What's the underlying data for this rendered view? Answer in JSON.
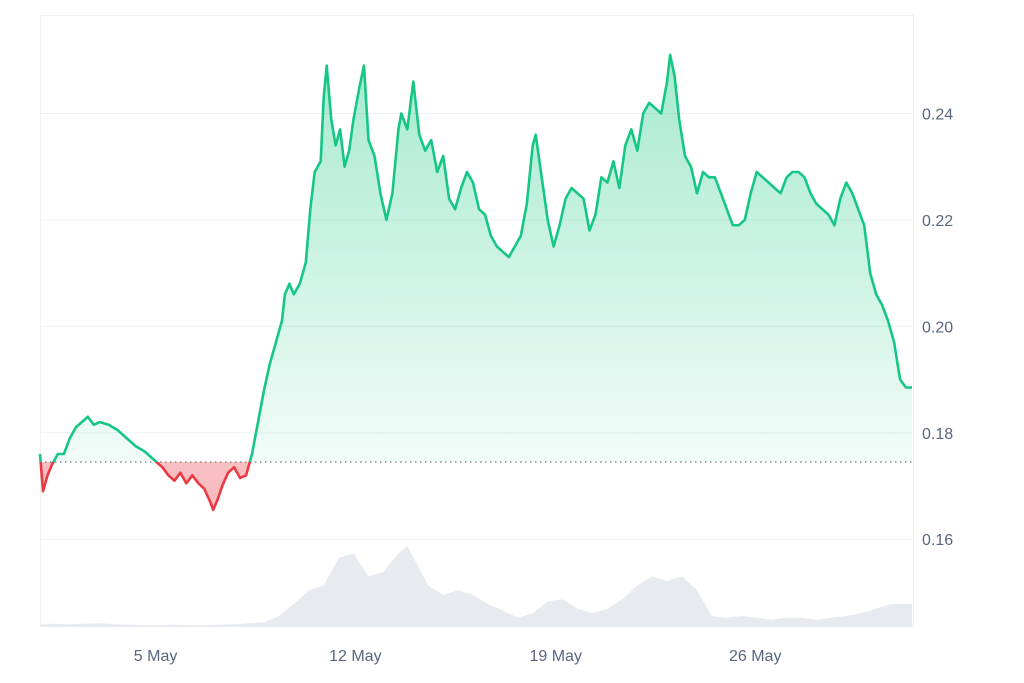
{
  "chart_data": {
    "type": "area",
    "title": "",
    "xlabel": "",
    "ylabel": "",
    "x_ticks": [
      "5 May",
      "12 May",
      "19 May",
      "26 May"
    ],
    "y_ticks": [
      "0.16",
      "0.18",
      "0.20",
      "0.22",
      "0.24"
    ],
    "ylim": [
      0.1435,
      0.2585
    ],
    "x_range": [
      "2 May",
      "1 Jun"
    ],
    "x_tick_days": [
      3.87,
      10.56,
      17.27,
      23.95
    ],
    "days_span": 30,
    "baseline": 0.1745,
    "grid": true,
    "legend": "none",
    "colors": {
      "up_line": "#16c784",
      "down_line": "#ea3943",
      "up_fill": "#16c784",
      "down_fill": "#ea3943",
      "volume": "#e7ebef",
      "grid": "#eff2f5",
      "baseline_dots": "#777777"
    },
    "series": [
      {
        "values": [
          [
            0.0,
            0.176
          ],
          [
            0.1,
            0.169
          ],
          [
            0.25,
            0.172
          ],
          [
            0.4,
            0.174
          ],
          [
            0.6,
            0.176
          ],
          [
            0.8,
            0.176
          ],
          [
            1.0,
            0.179
          ],
          [
            1.2,
            0.181
          ],
          [
            1.4,
            0.182
          ],
          [
            1.6,
            0.183
          ],
          [
            1.8,
            0.1815
          ],
          [
            2.0,
            0.182
          ],
          [
            2.3,
            0.1815
          ],
          [
            2.6,
            0.1805
          ],
          [
            2.9,
            0.179
          ],
          [
            3.2,
            0.1775
          ],
          [
            3.5,
            0.1765
          ],
          [
            3.8,
            0.175
          ],
          [
            4.1,
            0.1735
          ],
          [
            4.3,
            0.172
          ],
          [
            4.5,
            0.171
          ],
          [
            4.7,
            0.1725
          ],
          [
            4.9,
            0.1705
          ],
          [
            5.1,
            0.172
          ],
          [
            5.3,
            0.1705
          ],
          [
            5.5,
            0.1695
          ],
          [
            5.7,
            0.167
          ],
          [
            5.8,
            0.1655
          ],
          [
            5.95,
            0.1675
          ],
          [
            6.1,
            0.17
          ],
          [
            6.3,
            0.1725
          ],
          [
            6.5,
            0.1735
          ],
          [
            6.7,
            0.1715
          ],
          [
            6.9,
            0.172
          ],
          [
            7.1,
            0.176
          ],
          [
            7.3,
            0.182
          ],
          [
            7.5,
            0.188
          ],
          [
            7.7,
            0.193
          ],
          [
            7.9,
            0.197
          ],
          [
            8.1,
            0.201
          ],
          [
            8.2,
            0.206
          ],
          [
            8.35,
            0.208
          ],
          [
            8.5,
            0.206
          ],
          [
            8.7,
            0.208
          ],
          [
            8.9,
            0.212
          ],
          [
            9.05,
            0.222
          ],
          [
            9.2,
            0.229
          ],
          [
            9.4,
            0.231
          ],
          [
            9.5,
            0.243
          ],
          [
            9.6,
            0.249
          ],
          [
            9.75,
            0.239
          ],
          [
            9.9,
            0.234
          ],
          [
            10.05,
            0.237
          ],
          [
            10.2,
            0.23
          ],
          [
            10.35,
            0.233
          ],
          [
            10.5,
            0.239
          ],
          [
            10.7,
            0.245
          ],
          [
            10.85,
            0.249
          ],
          [
            11.0,
            0.235
          ],
          [
            11.2,
            0.232
          ],
          [
            11.4,
            0.225
          ],
          [
            11.6,
            0.22
          ],
          [
            11.8,
            0.225
          ],
          [
            12.0,
            0.237
          ],
          [
            12.1,
            0.24
          ],
          [
            12.3,
            0.237
          ],
          [
            12.5,
            0.246
          ],
          [
            12.7,
            0.236
          ],
          [
            12.9,
            0.233
          ],
          [
            13.1,
            0.235
          ],
          [
            13.3,
            0.229
          ],
          [
            13.5,
            0.232
          ],
          [
            13.7,
            0.224
          ],
          [
            13.9,
            0.222
          ],
          [
            14.1,
            0.226
          ],
          [
            14.3,
            0.229
          ],
          [
            14.5,
            0.227
          ],
          [
            14.7,
            0.222
          ],
          [
            14.9,
            0.221
          ],
          [
            15.1,
            0.217
          ],
          [
            15.3,
            0.215
          ],
          [
            15.5,
            0.214
          ],
          [
            15.7,
            0.213
          ],
          [
            15.9,
            0.215
          ],
          [
            16.1,
            0.217
          ],
          [
            16.3,
            0.223
          ],
          [
            16.5,
            0.234
          ],
          [
            16.6,
            0.236
          ],
          [
            16.8,
            0.228
          ],
          [
            17.0,
            0.22
          ],
          [
            17.2,
            0.215
          ],
          [
            17.4,
            0.219
          ],
          [
            17.6,
            0.224
          ],
          [
            17.8,
            0.226
          ],
          [
            18.0,
            0.225
          ],
          [
            18.2,
            0.224
          ],
          [
            18.4,
            0.218
          ],
          [
            18.6,
            0.221
          ],
          [
            18.8,
            0.228
          ],
          [
            19.0,
            0.227
          ],
          [
            19.2,
            0.231
          ],
          [
            19.4,
            0.226
          ],
          [
            19.6,
            0.234
          ],
          [
            19.8,
            0.237
          ],
          [
            20.0,
            0.233
          ],
          [
            20.2,
            0.24
          ],
          [
            20.4,
            0.242
          ],
          [
            20.6,
            0.241
          ],
          [
            20.8,
            0.24
          ],
          [
            21.0,
            0.246
          ],
          [
            21.1,
            0.251
          ],
          [
            21.25,
            0.247
          ],
          [
            21.4,
            0.239
          ],
          [
            21.6,
            0.232
          ],
          [
            21.8,
            0.23
          ],
          [
            22.0,
            0.225
          ],
          [
            22.2,
            0.229
          ],
          [
            22.4,
            0.228
          ],
          [
            22.6,
            0.228
          ],
          [
            22.8,
            0.225
          ],
          [
            23.0,
            0.222
          ],
          [
            23.2,
            0.219
          ],
          [
            23.4,
            0.219
          ],
          [
            23.6,
            0.22
          ],
          [
            23.8,
            0.225
          ],
          [
            24.0,
            0.229
          ],
          [
            24.2,
            0.228
          ],
          [
            24.4,
            0.227
          ],
          [
            24.6,
            0.226
          ],
          [
            24.8,
            0.225
          ],
          [
            25.0,
            0.228
          ],
          [
            25.2,
            0.229
          ],
          [
            25.4,
            0.229
          ],
          [
            25.6,
            0.228
          ],
          [
            25.8,
            0.225
          ],
          [
            26.0,
            0.223
          ],
          [
            26.2,
            0.222
          ],
          [
            26.4,
            0.221
          ],
          [
            26.6,
            0.219
          ],
          [
            26.8,
            0.224
          ],
          [
            27.0,
            0.227
          ],
          [
            27.2,
            0.225
          ],
          [
            27.4,
            0.222
          ],
          [
            27.6,
            0.219
          ],
          [
            27.8,
            0.21
          ],
          [
            28.0,
            0.206
          ],
          [
            28.2,
            0.204
          ],
          [
            28.4,
            0.201
          ],
          [
            28.6,
            0.197
          ],
          [
            28.8,
            0.19
          ],
          [
            29.0,
            0.1885
          ],
          [
            29.2,
            0.1885
          ]
        ]
      }
    ],
    "volume": [
      [
        0.0,
        0.03
      ],
      [
        0.5,
        0.035
      ],
      [
        1.0,
        0.03
      ],
      [
        1.5,
        0.035
      ],
      [
        2.0,
        0.04
      ],
      [
        2.5,
        0.03
      ],
      [
        3.0,
        0.025
      ],
      [
        3.5,
        0.02
      ],
      [
        4.0,
        0.02
      ],
      [
        4.5,
        0.025
      ],
      [
        5.0,
        0.02
      ],
      [
        5.5,
        0.02
      ],
      [
        6.0,
        0.025
      ],
      [
        6.5,
        0.03
      ],
      [
        7.0,
        0.04
      ],
      [
        7.5,
        0.05
      ],
      [
        8.0,
        0.12
      ],
      [
        8.5,
        0.25
      ],
      [
        9.0,
        0.4
      ],
      [
        9.5,
        0.45
      ],
      [
        10.0,
        0.75
      ],
      [
        10.5,
        0.8
      ],
      [
        11.0,
        0.55
      ],
      [
        11.5,
        0.6
      ],
      [
        12.0,
        0.8
      ],
      [
        12.3,
        0.88
      ],
      [
        12.6,
        0.7
      ],
      [
        13.0,
        0.45
      ],
      [
        13.5,
        0.35
      ],
      [
        14.0,
        0.4
      ],
      [
        14.5,
        0.35
      ],
      [
        15.0,
        0.25
      ],
      [
        15.5,
        0.18
      ],
      [
        16.0,
        0.1
      ],
      [
        16.5,
        0.15
      ],
      [
        17.0,
        0.28
      ],
      [
        17.5,
        0.3
      ],
      [
        18.0,
        0.2
      ],
      [
        18.5,
        0.15
      ],
      [
        19.0,
        0.2
      ],
      [
        19.5,
        0.3
      ],
      [
        20.0,
        0.45
      ],
      [
        20.5,
        0.55
      ],
      [
        21.0,
        0.5
      ],
      [
        21.5,
        0.55
      ],
      [
        22.0,
        0.4
      ],
      [
        22.5,
        0.12
      ],
      [
        23.0,
        0.1
      ],
      [
        23.5,
        0.12
      ],
      [
        24.0,
        0.1
      ],
      [
        24.5,
        0.08
      ],
      [
        25.0,
        0.1
      ],
      [
        25.5,
        0.1
      ],
      [
        26.0,
        0.08
      ],
      [
        26.5,
        0.1
      ],
      [
        27.0,
        0.12
      ],
      [
        27.5,
        0.15
      ],
      [
        28.0,
        0.2
      ],
      [
        28.5,
        0.25
      ],
      [
        29.2,
        0.25
      ]
    ]
  }
}
